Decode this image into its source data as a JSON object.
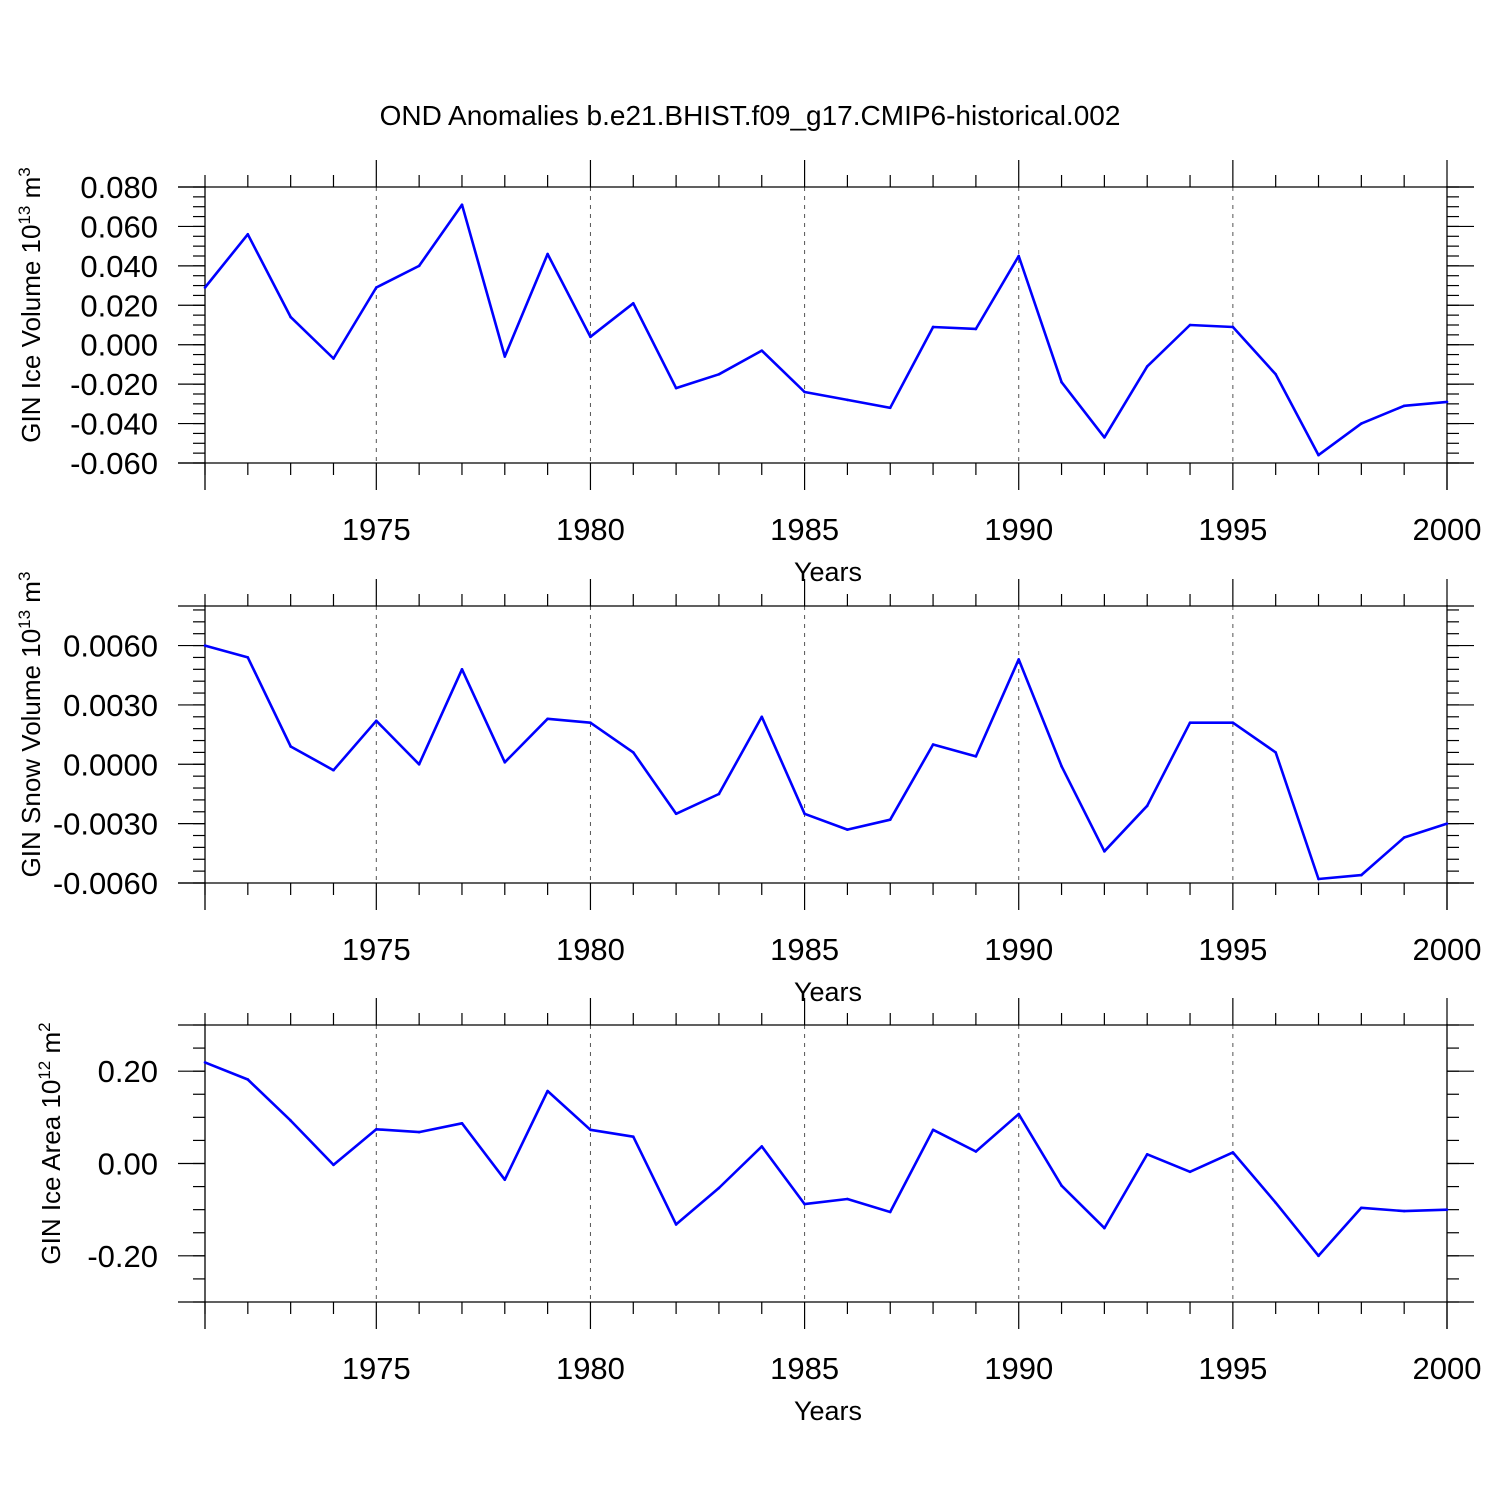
{
  "title": "OND Anomalies b.e21.BHIST.f09_g17.CMIP6-historical.002",
  "colors": {
    "line": "#0000ff",
    "axis": "#000000",
    "grid": "#555555"
  },
  "chart_data": [
    {
      "type": "line",
      "ylabel": "GIN Ice Volume 10",
      "ylabel_exp": "13",
      "ylabel_unit": "m",
      "ylabel_unit_exp": "3",
      "xlabel": "Years",
      "xlim": [
        1971,
        2000
      ],
      "ylim": [
        -0.06,
        0.08
      ],
      "yticks": [
        -0.06,
        -0.04,
        -0.02,
        0.0,
        0.02,
        0.04,
        0.06,
        0.08
      ],
      "ytick_labels": [
        "-0.060",
        "-0.040",
        "-0.020",
        "0.000",
        "0.020",
        "0.040",
        "0.060",
        "0.080"
      ],
      "yminor_step": 0.005,
      "xticks": [
        1975,
        1980,
        1985,
        1990,
        1995,
        2000
      ],
      "xtick_labels": [
        "1975",
        "1980",
        "1985",
        "1990",
        "1995",
        "2000"
      ],
      "grid_x": [
        1975,
        1980,
        1985,
        1990,
        1995
      ],
      "x": [
        1971,
        1972,
        1973,
        1974,
        1975,
        1976,
        1977,
        1978,
        1979,
        1980,
        1981,
        1982,
        1983,
        1984,
        1985,
        1986,
        1987,
        1988,
        1989,
        1990,
        1991,
        1992,
        1993,
        1994,
        1995,
        1996,
        1997,
        1998,
        1999,
        2000
      ],
      "values": [
        0.029,
        0.056,
        0.014,
        -0.007,
        0.029,
        0.04,
        0.071,
        -0.006,
        0.046,
        0.004,
        0.021,
        -0.022,
        -0.015,
        -0.003,
        -0.024,
        -0.028,
        -0.032,
        0.009,
        0.008,
        0.045,
        -0.019,
        -0.047,
        -0.011,
        0.01,
        0.009,
        -0.015,
        -0.056,
        -0.04,
        -0.031,
        -0.029
      ]
    },
    {
      "type": "line",
      "ylabel": "GIN Snow Volume 10",
      "ylabel_exp": "13",
      "ylabel_unit": "m",
      "ylabel_unit_exp": "3",
      "xlabel": "Years",
      "xlim": [
        1971,
        2000
      ],
      "ylim": [
        -0.006,
        0.008
      ],
      "yticks": [
        -0.006,
        -0.003,
        0.0,
        0.003,
        0.006
      ],
      "ytick_labels": [
        "-0.0060",
        "-0.0030",
        "0.0000",
        "0.0030",
        "0.0060"
      ],
      "yminor_step": 0.0006,
      "xticks": [
        1975,
        1980,
        1985,
        1990,
        1995,
        2000
      ],
      "xtick_labels": [
        "1975",
        "1980",
        "1985",
        "1990",
        "1995",
        "2000"
      ],
      "grid_x": [
        1975,
        1980,
        1985,
        1990,
        1995
      ],
      "x": [
        1971,
        1972,
        1973,
        1974,
        1975,
        1976,
        1977,
        1978,
        1979,
        1980,
        1981,
        1982,
        1983,
        1984,
        1985,
        1986,
        1987,
        1988,
        1989,
        1990,
        1991,
        1992,
        1993,
        1994,
        1995,
        1996,
        1997,
        1998,
        1999,
        2000
      ],
      "values": [
        0.006,
        0.0054,
        0.0009,
        -0.0003,
        0.0022,
        0.0,
        0.0048,
        0.0001,
        0.0023,
        0.0021,
        0.0006,
        -0.0025,
        -0.0015,
        0.0024,
        -0.0025,
        -0.0033,
        -0.0028,
        0.001,
        0.0004,
        0.0053,
        -0.0001,
        -0.0044,
        -0.0021,
        0.0021,
        0.0021,
        0.0006,
        -0.0058,
        -0.0056,
        -0.0037,
        -0.003
      ]
    },
    {
      "type": "line",
      "ylabel": "GIN Ice Area 10",
      "ylabel_exp": "12",
      "ylabel_unit": "m",
      "ylabel_unit_exp": "2",
      "xlabel": "Years",
      "xlim": [
        1971,
        2000
      ],
      "ylim": [
        -0.3,
        0.3
      ],
      "yticks": [
        -0.2,
        0.0,
        0.2
      ],
      "ytick_labels": [
        "-0.20",
        "0.00",
        "0.20"
      ],
      "yminor_step": 0.05,
      "xticks": [
        1975,
        1980,
        1985,
        1990,
        1995,
        2000
      ],
      "xtick_labels": [
        "1975",
        "1980",
        "1985",
        "1990",
        "1995",
        "2000"
      ],
      "grid_x": [
        1975,
        1980,
        1985,
        1990,
        1995
      ],
      "x": [
        1971,
        1972,
        1973,
        1974,
        1975,
        1976,
        1977,
        1978,
        1979,
        1980,
        1981,
        1982,
        1983,
        1984,
        1985,
        1986,
        1987,
        1988,
        1989,
        1990,
        1991,
        1992,
        1993,
        1994,
        1995,
        1996,
        1997,
        1998,
        1999,
        2000
      ],
      "values": [
        0.219,
        0.182,
        0.093,
        -0.003,
        0.074,
        0.068,
        0.087,
        -0.035,
        0.157,
        0.073,
        0.058,
        -0.132,
        -0.053,
        0.037,
        -0.088,
        -0.077,
        -0.105,
        0.073,
        0.026,
        0.107,
        -0.048,
        -0.14,
        0.02,
        -0.018,
        0.024,
        -0.085,
        -0.2,
        -0.096,
        -0.103,
        -0.1
      ]
    }
  ]
}
